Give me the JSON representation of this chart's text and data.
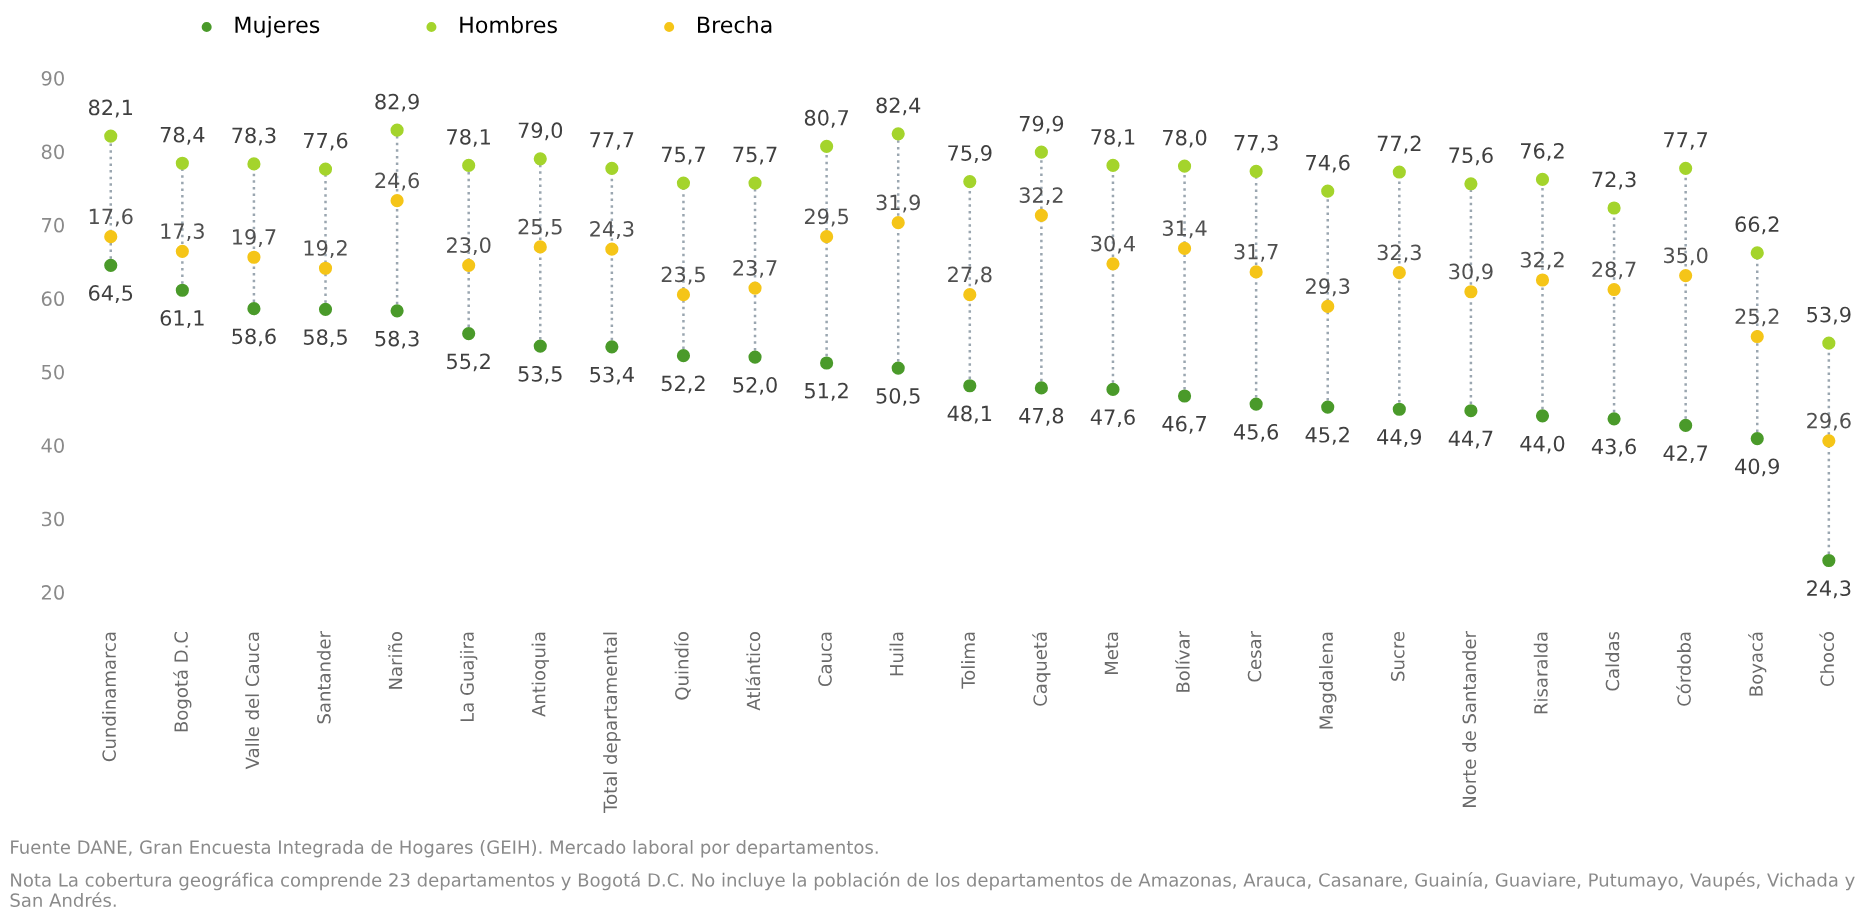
{
  "chart_data": {
    "type": "scatter",
    "categories": [
      "Cundinamarca",
      "Bogotá D.C",
      "Valle del Cauca",
      "Santander",
      "Nariño",
      "La Guajira",
      "Antioquia",
      "Total departamental",
      "Quindío",
      "Atlántico",
      "Cauca",
      "Huila",
      "Tolima",
      "Caquetá",
      "Meta",
      "Bolívar",
      "Cesar",
      "Magdalena",
      "Sucre",
      "Norte de Santander",
      "Risaralda",
      "Caldas",
      "Córdoba",
      "Boyacá",
      "Chocó"
    ],
    "series": [
      {
        "name": "Mujeres",
        "color": "#4a9a2a",
        "values": [
          64.5,
          61.1,
          58.6,
          58.5,
          58.3,
          55.2,
          53.5,
          53.4,
          52.2,
          52.0,
          51.2,
          50.5,
          48.1,
          47.8,
          47.6,
          46.7,
          45.6,
          45.2,
          44.9,
          44.7,
          44.0,
          43.6,
          42.7,
          40.9,
          24.3
        ],
        "value_labels": [
          "64,5",
          "61,1",
          "58,6",
          "58,5",
          "58,3",
          "55,2",
          "53,5",
          "53,4",
          "52,2",
          "52,0",
          "51,2",
          "50,5",
          "48,1",
          "47,8",
          "47,6",
          "46,7",
          "45,6",
          "45,2",
          "44,9",
          "44,7",
          "44,0",
          "43,6",
          "42,7",
          "40,9",
          "24,3"
        ]
      },
      {
        "name": "Hombres",
        "color": "#a4d42c",
        "values": [
          82.1,
          78.4,
          78.3,
          77.6,
          82.9,
          78.1,
          79.0,
          77.7,
          75.7,
          75.7,
          80.7,
          82.4,
          75.9,
          79.9,
          78.1,
          78.0,
          77.3,
          74.6,
          77.2,
          75.6,
          76.2,
          72.3,
          77.7,
          66.2,
          53.9
        ],
        "value_labels": [
          "82,1",
          "78,4",
          "78,3",
          "77,6",
          "82,9",
          "78,1",
          "79,0",
          "77,7",
          "75,7",
          "75,7",
          "80,7",
          "82,4",
          "75,9",
          "79,9",
          "78,1",
          "78,0",
          "77,3",
          "74,6",
          "77,2",
          "75,6",
          "76,2",
          "72,3",
          "77,7",
          "66,2",
          "53,9"
        ]
      },
      {
        "name": "Brecha",
        "color": "#f5c518",
        "values": [
          68.4,
          66.4,
          65.6,
          64.1,
          73.3,
          64.5,
          67.0,
          66.7,
          60.5,
          61.4,
          68.4,
          70.3,
          60.5,
          71.3,
          64.7,
          66.8,
          63.6,
          58.9,
          63.5,
          60.9,
          62.5,
          61.2,
          63.1,
          54.8,
          40.6
        ]
      }
    ],
    "annotations": [
      {
        "text": "17,6",
        "x": "Cundinamarca",
        "y": 68.4
      },
      {
        "text": "17,3",
        "x": "Bogotá D.C",
        "y": 66.4
      },
      {
        "text": "19,7",
        "x": "Valle del Cauca",
        "y": 65.6
      },
      {
        "text": "19,2",
        "x": "Santander",
        "y": 64.1
      },
      {
        "text": "24,6",
        "x": "Nariño",
        "y": 73.3
      },
      {
        "text": "23,0",
        "x": "La Guajira",
        "y": 64.5
      },
      {
        "text": "25,5",
        "x": "Antioquia",
        "y": 67.0
      },
      {
        "text": "24,3",
        "x": "Total departamental",
        "y": 66.7
      },
      {
        "text": "23,5",
        "x": "Quindío",
        "y": 60.5
      },
      {
        "text": "23,7",
        "x": "Atlántico",
        "y": 61.4
      },
      {
        "text": "29,5",
        "x": "Cauca",
        "y": 68.4
      },
      {
        "text": "31,9",
        "x": "Huila",
        "y": 70.3
      },
      {
        "text": "27,8",
        "x": "Tolima",
        "y": 60.5
      },
      {
        "text": "32,2",
        "x": "Caquetá",
        "y": 71.3
      },
      {
        "text": "30,4",
        "x": "Meta",
        "y": 64.7
      },
      {
        "text": "31,4",
        "x": "Bolívar",
        "y": 66.8
      },
      {
        "text": "31,7",
        "x": "Cesar",
        "y": 63.6
      },
      {
        "text": "29,3",
        "x": "Magdalena",
        "y": 58.9
      },
      {
        "text": "32,3",
        "x": "Sucre",
        "y": 63.5
      },
      {
        "text": "30,9",
        "x": "Norte de Santander",
        "y": 60.9
      },
      {
        "text": "32,2",
        "x": "Risaralda",
        "y": 62.5
      },
      {
        "text": "28,7",
        "x": "Caldas",
        "y": 61.2
      },
      {
        "text": "35,0",
        "x": "Córdoba",
        "y": 63.1
      },
      {
        "text": "25,2",
        "x": "Boyacá",
        "y": 54.8
      },
      {
        "text": "29,6",
        "x": "Chocó",
        "y": 40.6
      },
      "Fuente DANE, Gran Encuesta Integrada de Hogares (GEIH). Mercado laboral por departamentos.",
      "Nota La cobertura geográfica comprende 23 departamentos y Bogotá D.C. No incluye la población de los departamentos de Amazonas, Arauca, Casanare, Guainía, Guaviare, Putumayo, Vaupés, Vichada y San Andrés."
    ],
    "ylim": [
      20,
      90
    ],
    "yticks": [
      20,
      30,
      40,
      50,
      60,
      70,
      80,
      90
    ],
    "grid": false,
    "legend": "top left",
    "marker": "circle"
  }
}
